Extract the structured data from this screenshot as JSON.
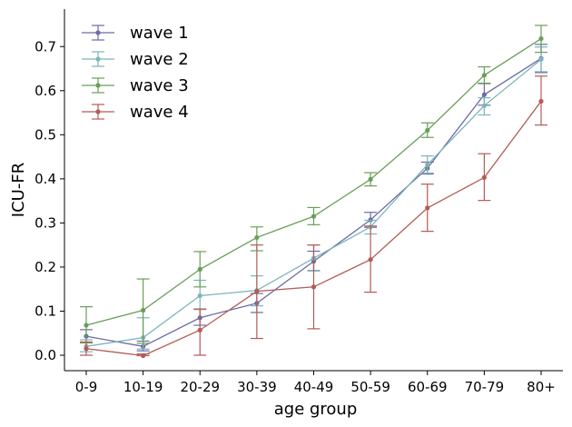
{
  "chart_data": {
    "type": "line",
    "title": "",
    "xlabel": "age group",
    "ylabel": "ICU-FR",
    "categories": [
      "0-9",
      "10-19",
      "20-29",
      "30-39",
      "40-49",
      "50-59",
      "60-69",
      "70-79",
      "80+"
    ],
    "ylim": [
      -0.035,
      0.785
    ],
    "yticks": [
      0.0,
      0.1,
      0.2,
      0.3,
      0.4,
      0.5,
      0.6,
      0.7
    ],
    "ytick_labels": [
      "0.0",
      "0.1",
      "0.2",
      "0.3",
      "0.4",
      "0.5",
      "0.6",
      "0.7"
    ],
    "grid": false,
    "legend_position": "top-left",
    "error_bars": true,
    "series": [
      {
        "name": "wave 1",
        "color": "#6b6ba6",
        "values": [
          0.043,
          0.02,
          0.085,
          0.118,
          0.213,
          0.307,
          0.424,
          0.591,
          0.673
        ],
        "lower": [
          0.028,
          0.01,
          0.068,
          0.097,
          0.192,
          0.29,
          0.411,
          0.567,
          0.641
        ],
        "upper": [
          0.058,
          0.032,
          0.104,
          0.14,
          0.236,
          0.324,
          0.438,
          0.616,
          0.705
        ]
      },
      {
        "name": "wave 2",
        "color": "#7bb5b9",
        "values": [
          0.02,
          0.04,
          0.135,
          0.147,
          0.22,
          0.291,
          0.432,
          0.566,
          0.671
        ],
        "lower": [
          0.008,
          0.014,
          0.104,
          0.112,
          0.191,
          0.275,
          0.413,
          0.545,
          0.643
        ],
        "upper": [
          0.035,
          0.085,
          0.17,
          0.18,
          0.25,
          0.306,
          0.452,
          0.584,
          0.699
        ]
      },
      {
        "name": "wave 3",
        "color": "#6a9e57",
        "values": [
          0.068,
          0.102,
          0.195,
          0.267,
          0.315,
          0.399,
          0.51,
          0.635,
          0.718
        ],
        "lower": [
          0.028,
          0.027,
          0.155,
          0.237,
          0.296,
          0.384,
          0.494,
          0.617,
          0.687
        ],
        "upper": [
          0.11,
          0.173,
          0.235,
          0.291,
          0.335,
          0.414,
          0.527,
          0.654,
          0.748
        ]
      },
      {
        "name": "wave 4",
        "color": "#b45a55",
        "values": [
          0.015,
          -0.001,
          0.057,
          0.145,
          0.155,
          0.217,
          0.334,
          0.403,
          0.576
        ],
        "lower": [
          0.0,
          -0.001,
          0.0,
          0.038,
          0.06,
          0.143,
          0.281,
          0.351,
          0.522
        ],
        "upper": [
          0.03,
          0.003,
          0.105,
          0.25,
          0.25,
          0.293,
          0.388,
          0.457,
          0.633
        ]
      }
    ]
  }
}
